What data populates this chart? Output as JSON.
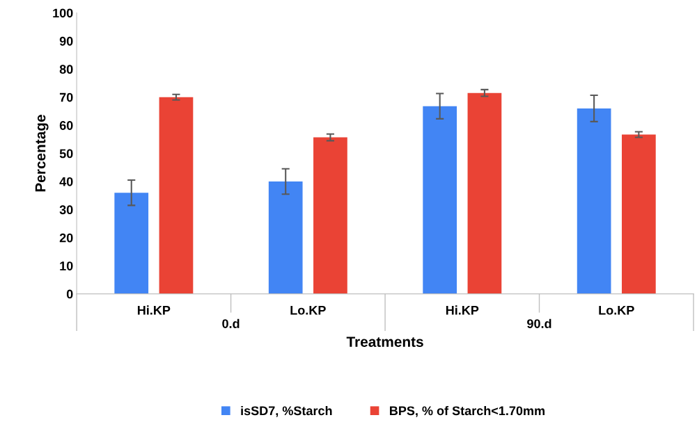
{
  "chart_data": {
    "type": "bar",
    "categories": [
      "Hi.KP",
      "Lo.KP",
      "Hi.KP",
      "Lo.KP"
    ],
    "series": [
      {
        "name": "isSD7, %Starch",
        "color": "#4285f4",
        "values": [
          36,
          40,
          66.8,
          66
        ],
        "errors": [
          4.5,
          4.5,
          4.5,
          4.7
        ]
      },
      {
        "name": "BPS, % of Starch<1.70mm",
        "color": "#ea4335",
        "values": [
          70,
          55.7,
          71.5,
          56.7
        ],
        "errors": [
          1,
          1.2,
          1.2,
          1
        ]
      }
    ],
    "xlabel": "Treatments",
    "ylabel": "Percentage",
    "annotations": [
      "0.d",
      "90.d"
    ],
    "ylim": [
      0,
      100
    ],
    "yticks": [
      0,
      10,
      20,
      30,
      40,
      50,
      60,
      70,
      80,
      90,
      100
    ],
    "grid": false,
    "legend": "bottom"
  }
}
